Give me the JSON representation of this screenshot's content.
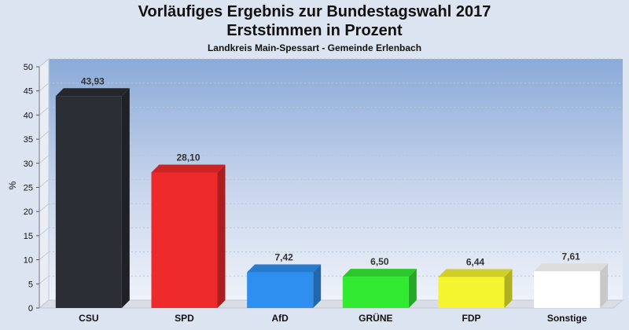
{
  "header": {
    "title_line1": "Vorläufiges Ergebnis zur Bundestagswahl 2017",
    "title_line2": "Erststimmen in Prozent",
    "subtitle": "Landkreis Main-Spessart - Gemeinde Erlenbach"
  },
  "chart_data": {
    "type": "bar",
    "title": "Vorläufiges Ergebnis zur Bundestagswahl 2017 Erststimmen in Prozent",
    "subtitle": "Landkreis Main-Spessart - Gemeinde Erlenbach",
    "ylabel": "%",
    "xlabel": "",
    "ylim": [
      0,
      50
    ],
    "yticks": [
      0,
      5,
      10,
      15,
      20,
      25,
      30,
      35,
      40,
      45,
      50
    ],
    "categories": [
      "CSU",
      "SPD",
      "AfD",
      "GRÜNE",
      "FDP",
      "Sonstige"
    ],
    "values": [
      43.93,
      28.1,
      7.42,
      6.5,
      6.44,
      7.61
    ],
    "value_labels": [
      "43,93",
      "28,10",
      "7,42",
      "6,50",
      "6,44",
      "7,61"
    ],
    "colors": [
      "#2b2e35",
      "#ee2a2a",
      "#2e8ff0",
      "#33ea33",
      "#f4f431",
      "#ffffff"
    ],
    "grid": true,
    "legend": "none"
  }
}
